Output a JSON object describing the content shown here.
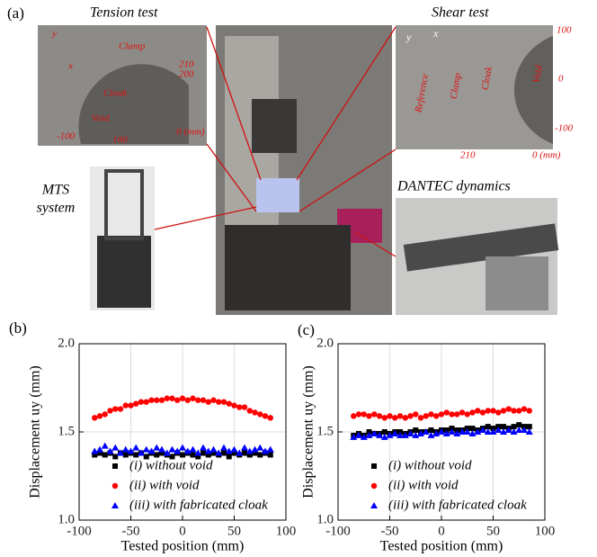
{
  "figure": {
    "panel_a": "(a)",
    "tension": {
      "title": "Tension test",
      "y": "y",
      "x": "x",
      "clamp": "Clamp",
      "cloak": "Cloak",
      "void": "Void",
      "t210": "210",
      "t200": "200",
      "zero": "0 (mm)",
      "neg100": "-100",
      "pos100": "100"
    },
    "shear": {
      "title": "Shear test",
      "y": "y",
      "x": "x",
      "reference": "Reference",
      "clamp": "Clamp",
      "cloak": "Cloak",
      "void": "Void",
      "t100": "100",
      "t0": "0",
      "tneg100": "-100",
      "t210": "210",
      "zero": "0 (mm)"
    },
    "mts": [
      "MTS",
      "system"
    ],
    "dantec": "DANTEC dynamics"
  },
  "chart_data": [
    {
      "type": "scatter",
      "panel_label": "(b)",
      "ylabel": "Displacement uy (mm)",
      "xlabel": "Tested position (mm)",
      "xlim": [
        -100,
        100
      ],
      "xticks": [
        -100,
        -50,
        0,
        50,
        100
      ],
      "ylim": [
        1,
        2
      ],
      "yticks": [
        {
          "value": 1,
          "label": "1.0"
        },
        {
          "value": 1.5,
          "label": "1.5"
        },
        {
          "value": 2,
          "label": "2.0"
        }
      ],
      "grid": true,
      "legend": "lower left",
      "x": [
        -85,
        -80,
        -75,
        -70,
        -65,
        -60,
        -55,
        -50,
        -45,
        -40,
        -35,
        -30,
        -25,
        -20,
        -15,
        -10,
        -5,
        0,
        5,
        10,
        15,
        20,
        25,
        30,
        35,
        40,
        45,
        50,
        55,
        60,
        65,
        70,
        75,
        80,
        85
      ],
      "series": [
        {
          "name": "(i) without void",
          "color": "#000000",
          "marker": "square",
          "values": [
            1.37,
            1.38,
            1.37,
            1.38,
            1.36,
            1.38,
            1.37,
            1.38,
            1.37,
            1.38,
            1.36,
            1.38,
            1.37,
            1.38,
            1.37,
            1.36,
            1.38,
            1.37,
            1.38,
            1.37,
            1.36,
            1.38,
            1.37,
            1.38,
            1.37,
            1.38,
            1.36,
            1.38,
            1.37,
            1.38,
            1.37,
            1.38,
            1.37,
            1.38,
            1.37
          ]
        },
        {
          "name": "(ii) with void",
          "color": "#ff0000",
          "marker": "circle",
          "values": [
            1.58,
            1.59,
            1.6,
            1.62,
            1.63,
            1.63,
            1.65,
            1.65,
            1.66,
            1.67,
            1.67,
            1.68,
            1.68,
            1.68,
            1.69,
            1.69,
            1.68,
            1.69,
            1.68,
            1.69,
            1.68,
            1.68,
            1.67,
            1.68,
            1.67,
            1.67,
            1.66,
            1.65,
            1.64,
            1.64,
            1.62,
            1.61,
            1.6,
            1.59,
            1.58
          ]
        },
        {
          "name": "(iii) with fabricated cloak",
          "color": "#0000ff",
          "marker": "triangle",
          "values": [
            1.39,
            1.4,
            1.42,
            1.39,
            1.41,
            1.38,
            1.4,
            1.39,
            1.41,
            1.38,
            1.4,
            1.39,
            1.41,
            1.4,
            1.38,
            1.4,
            1.39,
            1.41,
            1.39,
            1.4,
            1.38,
            1.41,
            1.39,
            1.4,
            1.38,
            1.41,
            1.39,
            1.4,
            1.38,
            1.41,
            1.39,
            1.4,
            1.41,
            1.39,
            1.4
          ]
        }
      ]
    },
    {
      "type": "scatter",
      "panel_label": "(c)",
      "ylabel": "Displacement uy (mm)",
      "xlabel": "Tested position (mm)",
      "xlim": [
        -100,
        100
      ],
      "xticks": [
        -100,
        -50,
        0,
        50,
        100
      ],
      "ylim": [
        1,
        2
      ],
      "yticks": [
        {
          "value": 1,
          "label": "1.0"
        },
        {
          "value": 1.5,
          "label": "1.5"
        },
        {
          "value": 2,
          "label": "2.0"
        }
      ],
      "grid": true,
      "legend": "lower left",
      "x": [
        -85,
        -80,
        -75,
        -70,
        -65,
        -60,
        -55,
        -50,
        -45,
        -40,
        -35,
        -30,
        -25,
        -20,
        -15,
        -10,
        -5,
        0,
        5,
        10,
        15,
        20,
        25,
        30,
        35,
        40,
        45,
        50,
        55,
        60,
        65,
        70,
        75,
        80,
        85
      ],
      "series": [
        {
          "name": "(i) without void",
          "color": "#000000",
          "marker": "square",
          "values": [
            1.48,
            1.49,
            1.48,
            1.5,
            1.49,
            1.49,
            1.5,
            1.49,
            1.5,
            1.5,
            1.49,
            1.5,
            1.51,
            1.5,
            1.5,
            1.51,
            1.5,
            1.51,
            1.51,
            1.52,
            1.51,
            1.51,
            1.52,
            1.52,
            1.51,
            1.52,
            1.53,
            1.52,
            1.53,
            1.53,
            1.52,
            1.53,
            1.54,
            1.53,
            1.53
          ]
        },
        {
          "name": "(ii) with void",
          "color": "#ff0000",
          "marker": "circle",
          "values": [
            1.59,
            1.6,
            1.6,
            1.59,
            1.6,
            1.59,
            1.58,
            1.59,
            1.58,
            1.59,
            1.58,
            1.59,
            1.6,
            1.58,
            1.59,
            1.6,
            1.59,
            1.6,
            1.61,
            1.6,
            1.6,
            1.61,
            1.6,
            1.61,
            1.62,
            1.61,
            1.62,
            1.62,
            1.61,
            1.62,
            1.63,
            1.62,
            1.62,
            1.63,
            1.62
          ]
        },
        {
          "name": "(iii) with fabricated cloak",
          "color": "#0000ff",
          "marker": "triangle",
          "values": [
            1.47,
            1.48,
            1.47,
            1.48,
            1.49,
            1.48,
            1.47,
            1.48,
            1.49,
            1.48,
            1.48,
            1.49,
            1.48,
            1.49,
            1.5,
            1.48,
            1.49,
            1.5,
            1.49,
            1.5,
            1.49,
            1.5,
            1.5,
            1.49,
            1.5,
            1.51,
            1.5,
            1.5,
            1.51,
            1.5,
            1.51,
            1.5,
            1.51,
            1.51,
            1.5
          ]
        }
      ]
    }
  ]
}
